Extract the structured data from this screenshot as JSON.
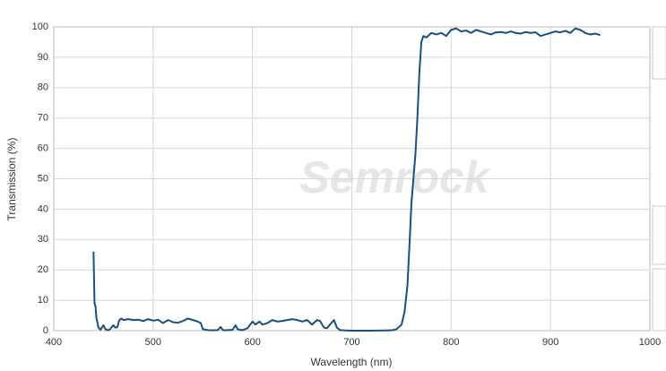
{
  "chart_data": {
    "type": "line",
    "watermark": "Semrock",
    "x_label": "Wavelength (nm)",
    "y_label": "Transmission (%)",
    "x": [
      440,
      441,
      442,
      443,
      445,
      447,
      450,
      452,
      454,
      456,
      460,
      462,
      464,
      466,
      468,
      470,
      475,
      480,
      485,
      490,
      495,
      500,
      505,
      510,
      515,
      520,
      525,
      530,
      535,
      540,
      545,
      548,
      550,
      555,
      560,
      565,
      568,
      570,
      572,
      575,
      580,
      583,
      585,
      587,
      590,
      595,
      600,
      603,
      607,
      610,
      615,
      620,
      625,
      630,
      635,
      640,
      645,
      650,
      655,
      660,
      665,
      668,
      672,
      675,
      678,
      682,
      685,
      688,
      692,
      700,
      720,
      740,
      745,
      750,
      753,
      756,
      758,
      760,
      762,
      764,
      766,
      768,
      770,
      772,
      775,
      780,
      785,
      790,
      795,
      800,
      805,
      810,
      815,
      820,
      825,
      830,
      835,
      840,
      845,
      850,
      855,
      860,
      865,
      870,
      875,
      880,
      885,
      890,
      895,
      900,
      905,
      910,
      915,
      920,
      925,
      930,
      935,
      940,
      945,
      950
    ],
    "series": [
      {
        "color": "#1b4f7c",
        "values": [
          26,
          9,
          8,
          4,
          1,
          0.3,
          1.8,
          0.5,
          0.2,
          0.3,
          1.8,
          1,
          1.2,
          3.5,
          4,
          3.5,
          3.8,
          3.5,
          3.6,
          3.2,
          3.8,
          3.3,
          3.6,
          2.5,
          3.5,
          2.8,
          2.6,
          3.2,
          4,
          3.5,
          3,
          2.5,
          0.5,
          0.2,
          0.1,
          0.2,
          1.2,
          0.3,
          0.1,
          0.2,
          0.3,
          1.8,
          0.5,
          0.3,
          0.2,
          0.8,
          3,
          2,
          3,
          2,
          2.5,
          3.5,
          3,
          3.2,
          3.5,
          3.8,
          3.5,
          3,
          3.5,
          2,
          3.5,
          3.2,
          1,
          0.8,
          2,
          3.5,
          1,
          0.2,
          0.1,
          0,
          0,
          0.1,
          0.5,
          2,
          6,
          15,
          28,
          42,
          50,
          58,
          70,
          85,
          95,
          97,
          96.5,
          98,
          97.5,
          98,
          97,
          99,
          99.5,
          98.5,
          98.8,
          98,
          99,
          98.5,
          98,
          97.5,
          98.2,
          98.3,
          98,
          98.5,
          98,
          97.8,
          98.3,
          98,
          98.2,
          97,
          97.5,
          98,
          98.5,
          98.2,
          98.7,
          98,
          99.5,
          99,
          98,
          97.5,
          97.8,
          97.3
        ]
      }
    ],
    "xlim": [
      400,
      1000
    ],
    "xticks": [
      400,
      500,
      600,
      700,
      800,
      900,
      1000
    ],
    "ylim": [
      0,
      100
    ],
    "yticks": [
      0,
      10,
      20,
      30,
      40,
      50,
      60,
      70,
      80,
      90,
      100
    ],
    "grid": true
  }
}
